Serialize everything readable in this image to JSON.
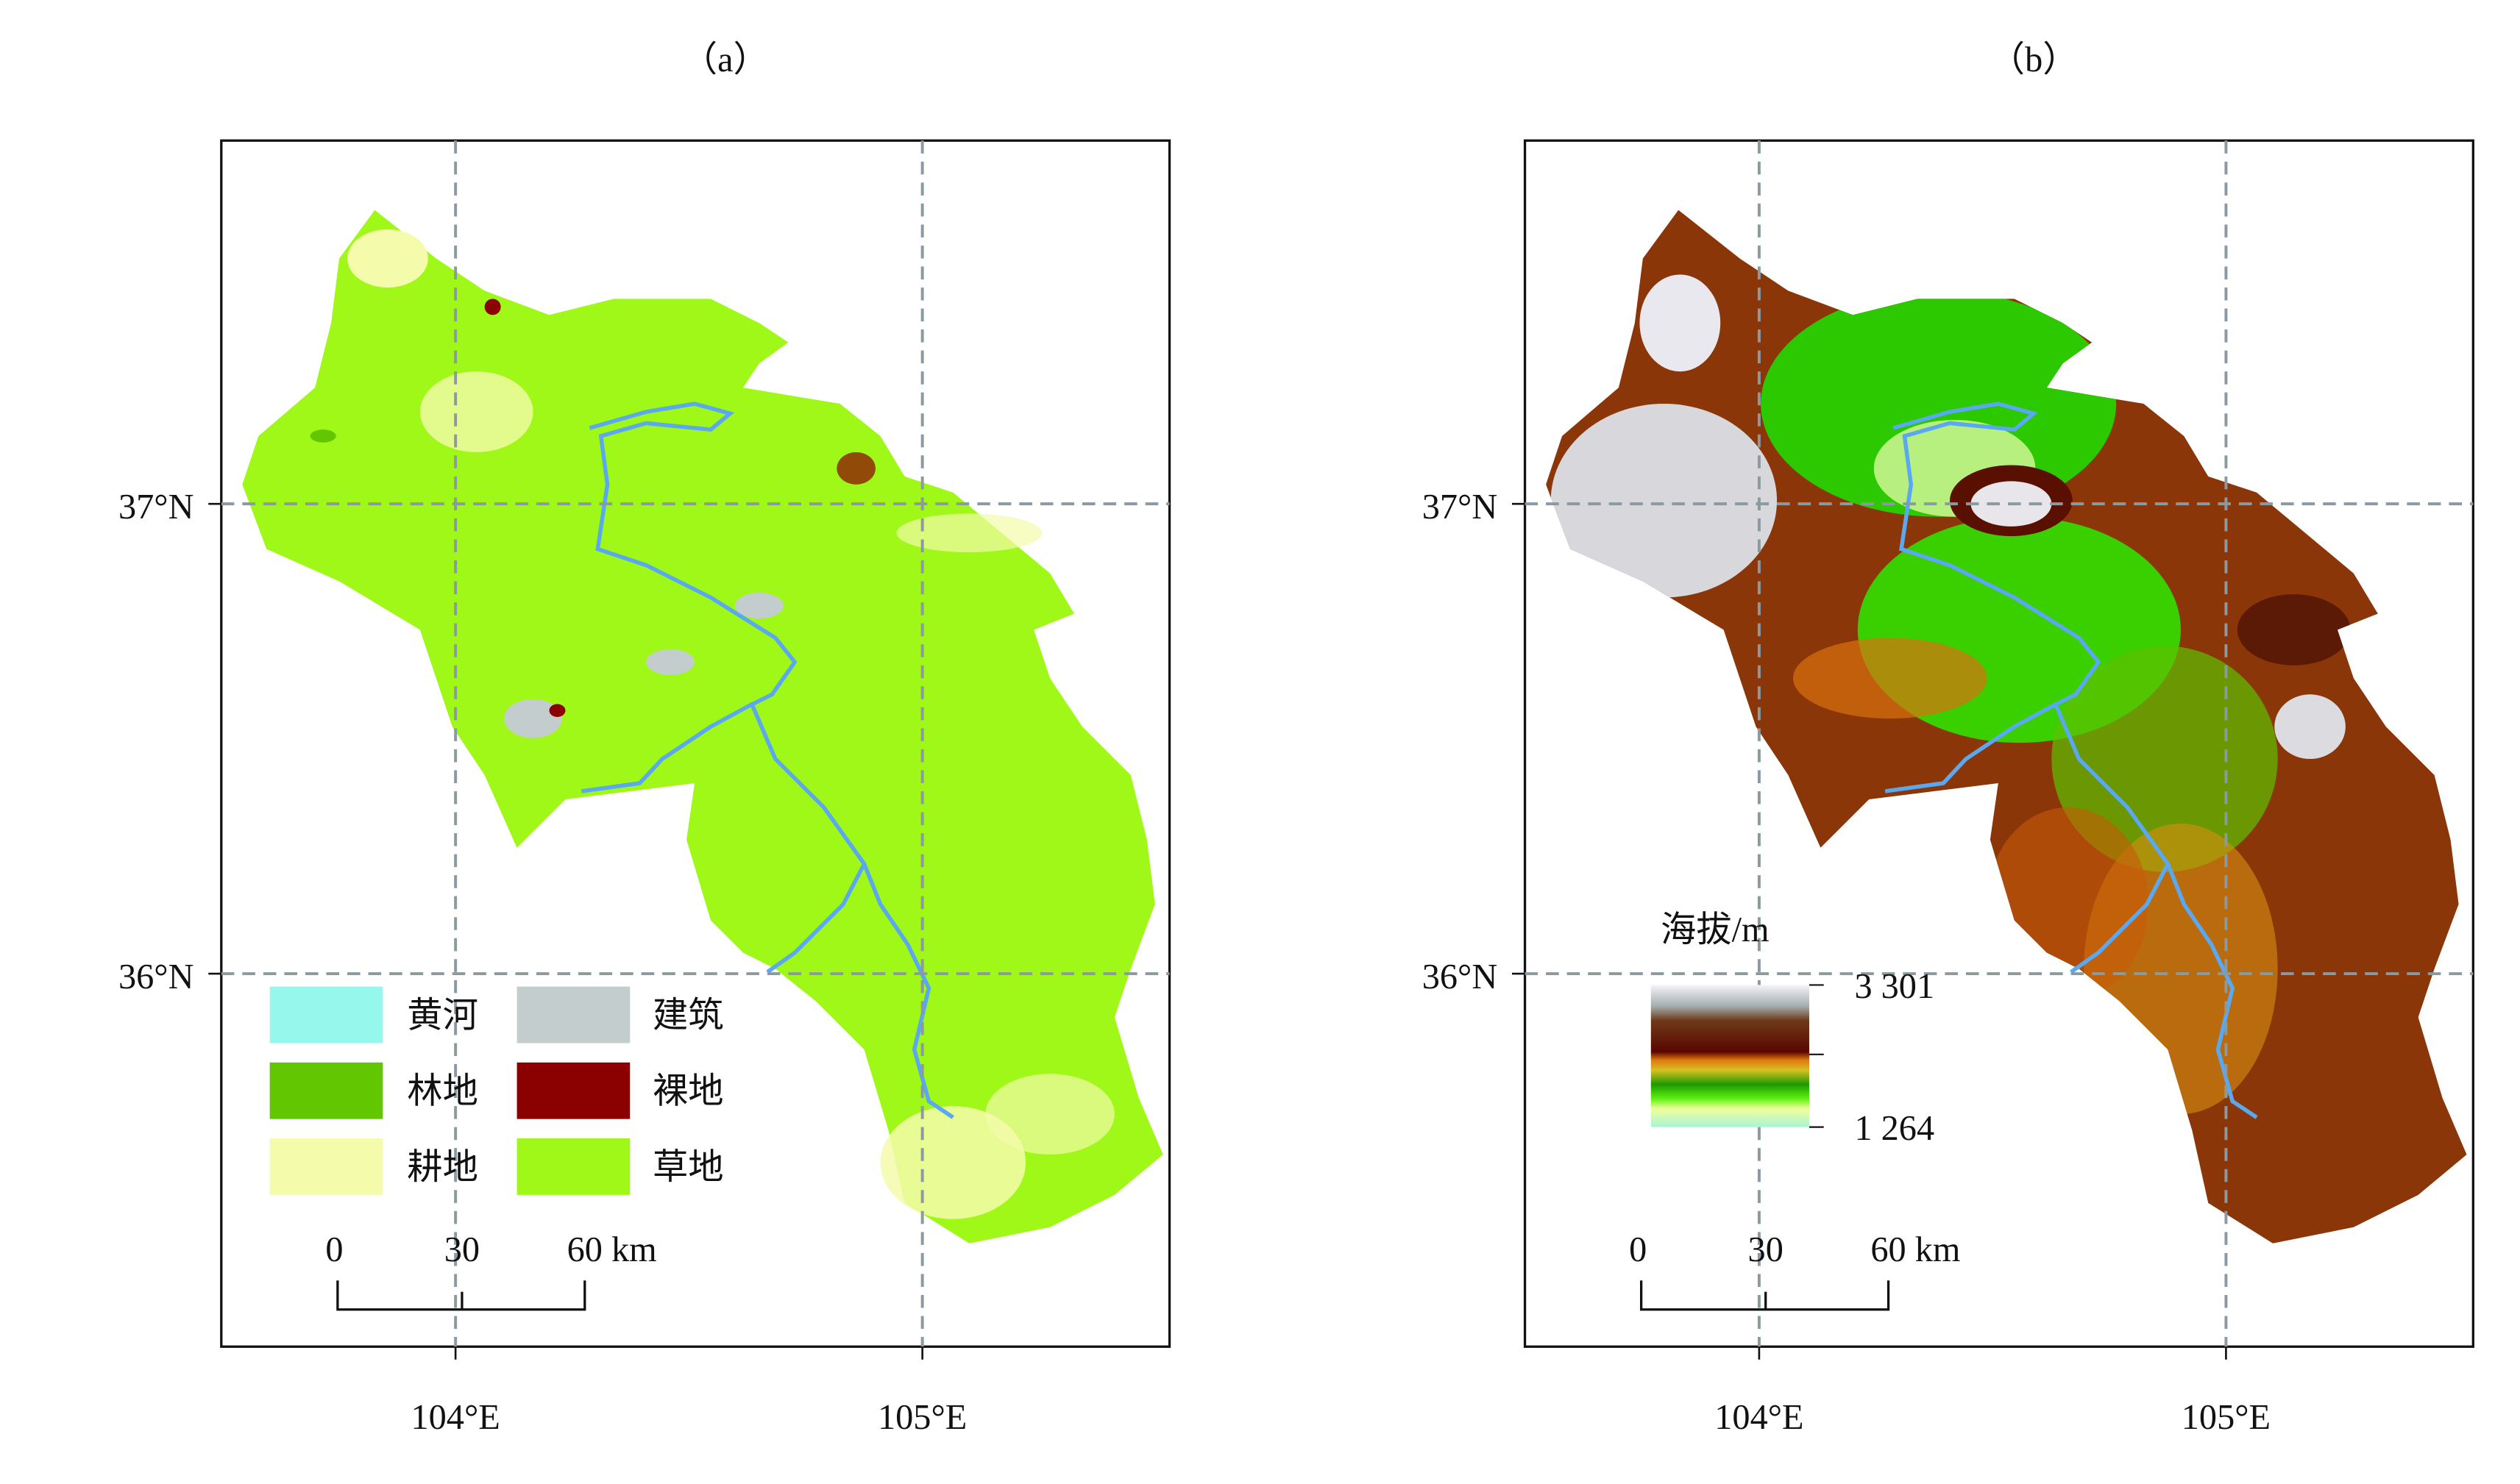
{
  "panels": [
    {
      "label": "（a）",
      "lat_labels": [
        "37°N",
        "36°N"
      ],
      "lon_labels": [
        "104°E",
        "105°E"
      ],
      "legend": [
        {
          "label": "黄河",
          "color": "#96f7ec"
        },
        {
          "label": "建筑",
          "color": "#c4cdcd"
        },
        {
          "label": "林地",
          "color": "#62c700"
        },
        {
          "label": "裸地",
          "color": "#8b0000"
        },
        {
          "label": "耕地",
          "color": "#f4fbaa"
        },
        {
          "label": "草地",
          "color": "#9ff818"
        }
      ],
      "scale_bar": {
        "ticks": [
          "0",
          "30",
          "60 km"
        ]
      }
    },
    {
      "label": "（b）",
      "lat_labels": [
        "37°N",
        "36°N"
      ],
      "lon_labels": [
        "104°E",
        "105°E"
      ],
      "colorbar": {
        "title": "海拔/m",
        "max_label": "3 301",
        "min_label": "1 264",
        "colors": [
          "#f6f3fa",
          "#a2adad",
          "#6e3a1a",
          "#5a0600",
          "#e07a10",
          "#d8c020",
          "#1c9a00",
          "#60f010",
          "#f0ff9a",
          "#a8f4d8"
        ]
      },
      "scale_bar": {
        "ticks": [
          "0",
          "30",
          "60 km"
        ]
      }
    }
  ],
  "colors": {
    "river": "#5aa8f0",
    "grid": "#8a9aa0",
    "elevation_low": "#3cc800",
    "elevation_high": "#7a2a05"
  }
}
